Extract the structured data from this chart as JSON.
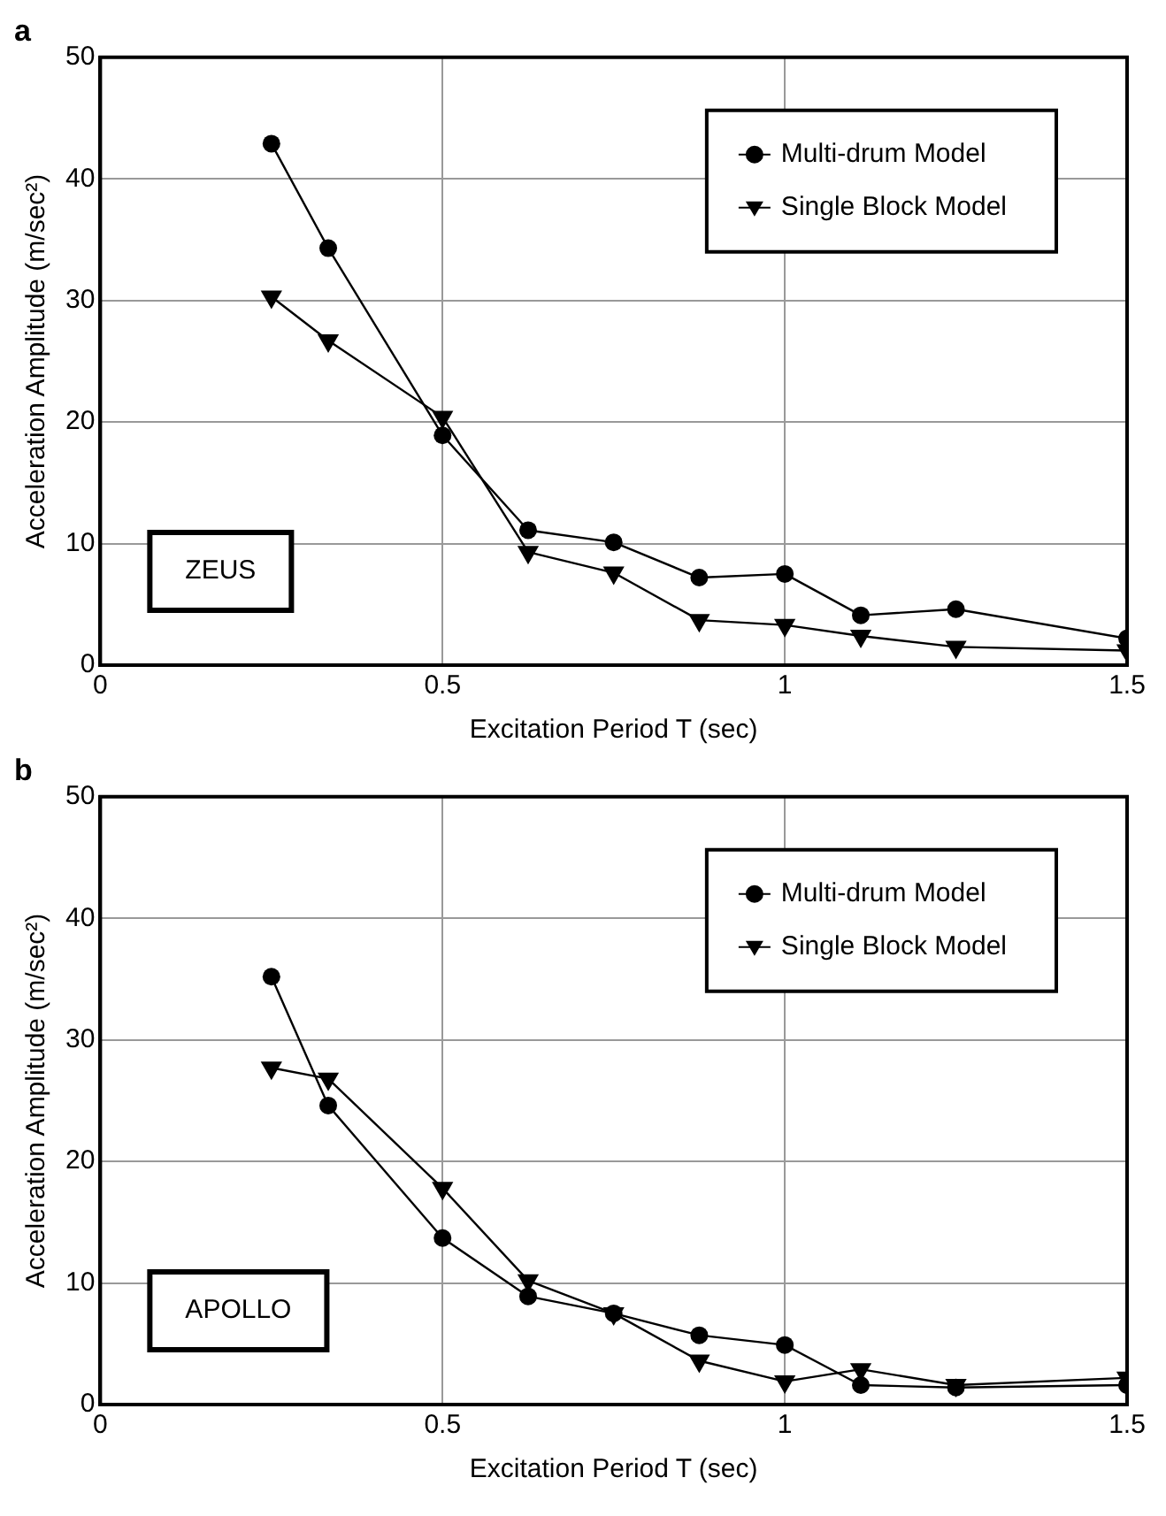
{
  "chart_data": [
    {
      "type": "line",
      "title": "a",
      "xlabel": "Excitation Period T (sec)",
      "ylabel": "Acceleration Amplitude (m/sec²)",
      "annotations": [
        "ZEUS"
      ],
      "x": [
        0.25,
        0.333,
        0.5,
        0.625,
        0.75,
        0.875,
        1.0,
        1.111,
        1.25,
        1.5
      ],
      "series": [
        {
          "name": "Multi-drum Model",
          "color": "#000000",
          "marker": "circle",
          "values": [
            42.9,
            34.3,
            18.9,
            11.1,
            10.1,
            7.2,
            7.5,
            4.1,
            4.6,
            2.2
          ]
        },
        {
          "name": "Single Block Model",
          "color": "#000000",
          "marker": "triangle",
          "values": [
            30.3,
            26.7,
            20.4,
            9.3,
            7.6,
            3.7,
            3.3,
            2.4,
            1.5,
            1.2
          ]
        }
      ],
      "xlim": [
        0,
        1.5
      ],
      "xticks": [
        0,
        0.5,
        1,
        1.5
      ],
      "ylim": [
        0,
        50
      ],
      "yticks": [
        0,
        10,
        20,
        30,
        40,
        50
      ],
      "grid": true,
      "legend": "top right",
      "line_style": "solid"
    },
    {
      "type": "line",
      "title": "b",
      "xlabel": "Excitation Period T (sec)",
      "ylabel": "Acceleration Amplitude (m/sec²)",
      "annotations": [
        "APOLLO"
      ],
      "x": [
        0.25,
        0.333,
        0.5,
        0.625,
        0.75,
        0.875,
        1.0,
        1.111,
        1.25,
        1.5
      ],
      "series": [
        {
          "name": "Multi-drum Model",
          "color": "#000000",
          "marker": "circle",
          "values": [
            35.2,
            24.6,
            13.7,
            8.9,
            7.5,
            5.7,
            4.9,
            1.6,
            1.4,
            1.6
          ]
        },
        {
          "name": "Single Block Model",
          "color": "#000000",
          "marker": "triangle",
          "values": [
            27.7,
            26.8,
            17.8,
            10.2,
            7.5,
            3.6,
            1.9,
            2.9,
            1.6,
            2.2
          ]
        }
      ],
      "xlim": [
        0,
        1.5
      ],
      "xticks": [
        0,
        0.5,
        1,
        1.5
      ],
      "ylim": [
        0,
        50
      ],
      "yticks": [
        0,
        10,
        20,
        30,
        40,
        50
      ],
      "grid": true,
      "legend": "top right",
      "line_style": "solid"
    }
  ]
}
